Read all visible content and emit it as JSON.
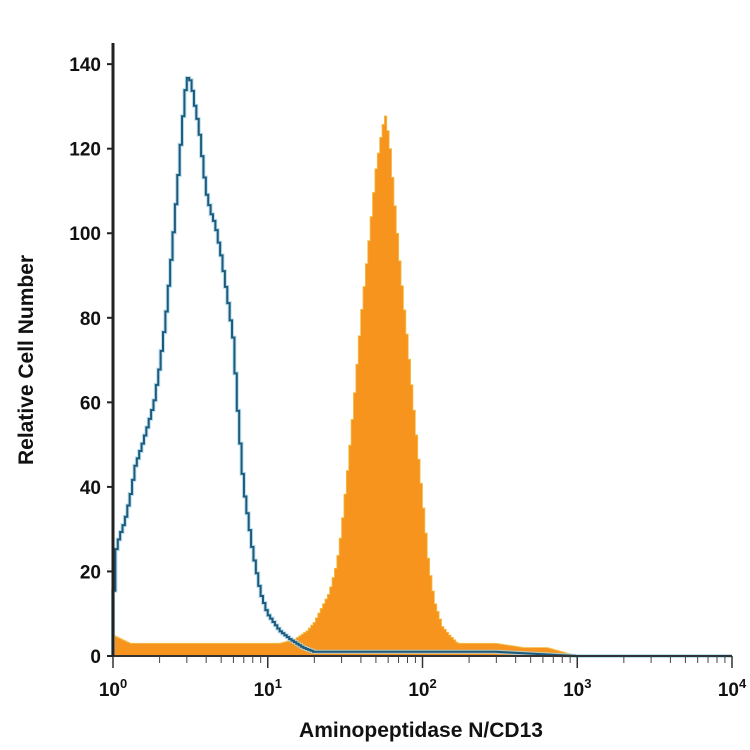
{
  "chart_data": {
    "type": "area",
    "xlabel": "Aminopeptidase N/CD13",
    "ylabel": "Relative Cell Number",
    "x_scale": "log",
    "xlim": [
      1,
      10000
    ],
    "ylim": [
      0,
      145
    ],
    "x_ticks": [
      1,
      10,
      100,
      1000,
      10000
    ],
    "x_tick_labels": [
      {
        "base": "10",
        "exp": "0"
      },
      {
        "base": "10",
        "exp": "1"
      },
      {
        "base": "10",
        "exp": "2"
      },
      {
        "base": "10",
        "exp": "3"
      },
      {
        "base": "10",
        "exp": "4"
      }
    ],
    "y_ticks": [
      0,
      20,
      40,
      60,
      80,
      100,
      120,
      140
    ],
    "y_tick_labels": [
      "0",
      "20",
      "40",
      "60",
      "80",
      "100",
      "120",
      "140"
    ],
    "grid": false,
    "series": [
      {
        "style": "filled",
        "color": "#F7941D",
        "x": [
          1.0,
          1.3,
          2,
          3,
          5,
          8,
          12,
          15,
          18,
          20,
          22,
          25,
          28,
          30,
          33,
          36,
          40,
          45,
          50,
          55,
          58,
          62,
          66,
          72,
          80,
          90,
          100,
          110,
          120,
          135,
          150,
          170,
          200,
          300,
          450,
          640,
          1000,
          10000
        ],
        "y": [
          5,
          3,
          3,
          3,
          3,
          3,
          3,
          4,
          6,
          8,
          11,
          15,
          22,
          30,
          45,
          60,
          80,
          98,
          115,
          125,
          128,
          120,
          108,
          92,
          75,
          55,
          38,
          22,
          13,
          7,
          5,
          3,
          3,
          3,
          2,
          2,
          0,
          0
        ]
      },
      {
        "style": "outline",
        "color": "#1F5A7A",
        "x": [
          1.0,
          1.05,
          1.1,
          1.2,
          1.3,
          1.4,
          1.55,
          1.7,
          1.85,
          2.0,
          2.2,
          2.4,
          2.6,
          2.8,
          3.0,
          3.2,
          3.4,
          3.6,
          4.0,
          4.3,
          4.6,
          5.0,
          5.5,
          6.0,
          6.5,
          7,
          8,
          9,
          10,
          12,
          14,
          17,
          20,
          25,
          30,
          50,
          100,
          300,
          1000,
          10000
        ],
        "y": [
          10,
          25,
          28,
          32,
          38,
          45,
          50,
          55,
          60,
          68,
          80,
          95,
          110,
          125,
          137,
          136,
          130,
          125,
          110,
          105,
          102,
          95,
          85,
          75,
          55,
          40,
          25,
          15,
          10,
          6,
          4,
          2,
          1,
          1,
          1,
          1,
          1,
          1,
          0,
          0
        ]
      }
    ]
  }
}
